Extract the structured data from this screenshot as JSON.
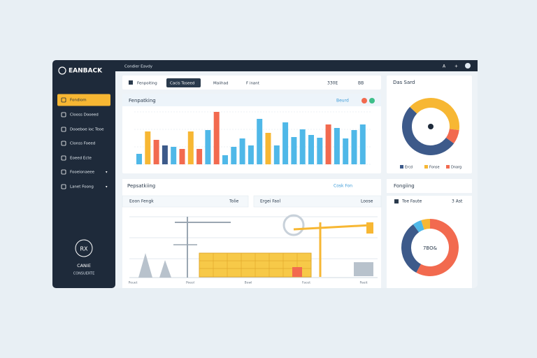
{
  "header": {
    "logo": "EANBACK",
    "breadcrumb": "Condier Eavdy"
  },
  "sidebar": {
    "items": [
      "Fondiom",
      "Clooss Dooeed",
      "Dooeboe ioc Teoe",
      "Clonss Foeed",
      "Eoeed Ecte",
      "Fooeionaeee",
      "Lanet Foong"
    ],
    "active": 0,
    "footer": {
      "badge": "RX",
      "name": "CANIE",
      "subtitle": "CONSUERTE"
    }
  },
  "tabs": {
    "items": [
      "Fenpoiting",
      "Cacis Toseed",
      "Maiihad",
      "F inant"
    ],
    "active": 1,
    "stats": [
      "330E",
      "BB"
    ]
  },
  "bar_panel": {
    "title": "Fenpatking",
    "action": "Beurd",
    "values": [
      15,
      47,
      35,
      27,
      25,
      22,
      47,
      22,
      49,
      75,
      13,
      25,
      37,
      27,
      65,
      45,
      27,
      60,
      39,
      50,
      42,
      38,
      57,
      52,
      37,
      49,
      57
    ],
    "colors": [
      "#4fb8e8",
      "#f7b733",
      "#f26a4f",
      "#3d5a8a",
      "#4fb8e8",
      "#f26a4f",
      "#f7b733",
      "#f26a4f",
      "#4fb8e8",
      "#f26a4f",
      "#4fb8e8",
      "#4fb8e8",
      "#4fb8e8",
      "#4fb8e8",
      "#4fb8e8",
      "#f7b733",
      "#4fb8e8",
      "#4fb8e8",
      "#4fb8e8",
      "#4fb8e8",
      "#4fb8e8",
      "#4fb8e8",
      "#f26a4f",
      "#4fb8e8",
      "#4fb8e8",
      "#4fb8e8",
      "#4fb8e8"
    ]
  },
  "donut_panel": {
    "title": "Das Sard",
    "labels": [
      "Ercd",
      "Fonse",
      "Dnarg"
    ],
    "values": [
      52,
      40,
      8
    ],
    "colors": [
      "#3d5a8a",
      "#f7b733",
      "#f26a4f"
    ]
  },
  "site_panel": {
    "title": "Pepsatkiing",
    "action": "Cosk Fon",
    "cards": [
      [
        "Eoon Fengk",
        "Tolie"
      ],
      [
        "Ergei Faol",
        "Loose"
      ]
    ],
    "x_labels": [
      "Pouet",
      "Poeol",
      "Bowl",
      "Facet",
      "Paeit"
    ]
  },
  "ring_panel": {
    "title": "Fongiing",
    "subtitle": "Toe Faute",
    "stat": "3 Ast",
    "center": "7BO&",
    "values": [
      58,
      32,
      5,
      5
    ],
    "colors": [
      "#f26a4f",
      "#3d5a8a",
      "#4fb8e8",
      "#f7b733"
    ]
  }
}
